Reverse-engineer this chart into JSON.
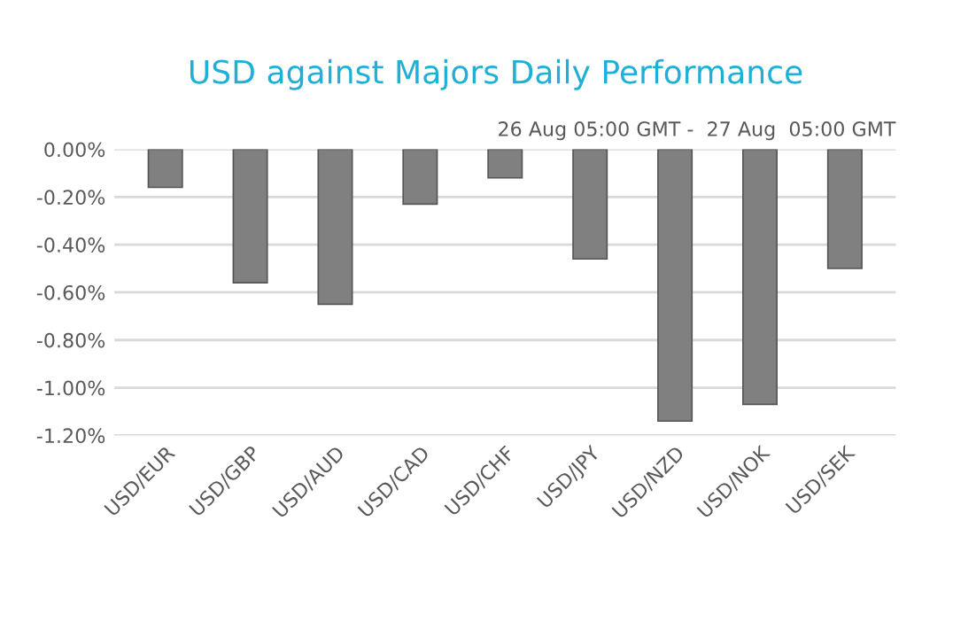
{
  "chart_data": {
    "type": "bar",
    "title": "USD against Majors Daily Performance",
    "subtitle": "26 Aug 05:00 GMT -  27 Aug  05:00 GMT",
    "categories": [
      "USD/EUR",
      "USD/GBP",
      "USD/AUD",
      "USD/CAD",
      "USD/CHF",
      "USD/JPY",
      "USD/NZD",
      "USD/NOK",
      "USD/SEK"
    ],
    "values": [
      -0.16,
      -0.56,
      -0.65,
      -0.23,
      -0.12,
      -0.46,
      -1.14,
      -1.07,
      -0.5
    ],
    "color": "#808080",
    "ylim": [
      -1.2,
      0
    ],
    "yticks": [
      {
        "value": -1.2,
        "label": "-1.20%"
      },
      {
        "value": -1.0,
        "label": "-1.00%"
      },
      {
        "value": -0.8,
        "label": "-0.80%"
      },
      {
        "value": -0.6,
        "label": "-0.60%"
      },
      {
        "value": -0.4,
        "label": "-0.40%"
      },
      {
        "value": -0.2,
        "label": "-0.20%"
      },
      {
        "value": 0,
        "label": "0.00%"
      }
    ],
    "grid": "y"
  }
}
